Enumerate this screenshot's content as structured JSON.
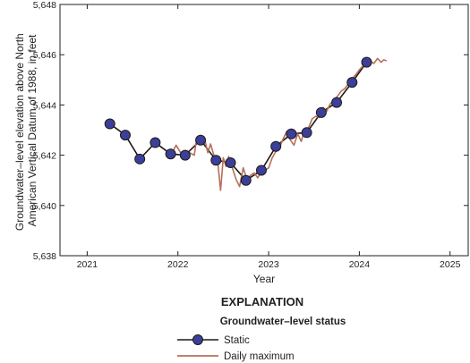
{
  "chart_data": {
    "type": "line",
    "xlabel": "Year",
    "ylabel_lines": [
      "Groundwater–level elevation above North",
      "American Vertical Datum of 1988, in feet"
    ],
    "xlim": [
      2020.7,
      2025.2
    ],
    "ylim": [
      5638,
      5648
    ],
    "x_ticks": [
      2021,
      2022,
      2023,
      2024,
      2025
    ],
    "y_ticks": [
      5638,
      5640,
      5642,
      5644,
      5646,
      5648
    ],
    "y_tick_labels": [
      "5,638",
      "5,640",
      "5,642",
      "5,644",
      "5,646",
      "5,648"
    ],
    "grid": false,
    "colors": {
      "static": "#1f1a17",
      "static_marker": "#3b3f99",
      "daily": "#b5705a"
    },
    "series": [
      {
        "name": "Static",
        "x": [
          2021.25,
          2021.42,
          2021.58,
          2021.75,
          2021.92,
          2022.08,
          2022.25,
          2022.42,
          2022.58,
          2022.75,
          2022.92,
          2023.08,
          2023.25,
          2023.42,
          2023.58,
          2023.75,
          2023.92,
          2024.08
        ],
        "y": [
          5643.25,
          5642.8,
          5641.85,
          5642.5,
          5642.05,
          5642.0,
          5642.6,
          5641.8,
          5641.7,
          5641.0,
          5641.4,
          5642.35,
          5642.85,
          5642.9,
          5643.7,
          5644.1,
          5644.9,
          5645.7
        ]
      },
      {
        "name": "Daily maximum",
        "x": [
          2021.93,
          2021.98,
          2022.03,
          2022.08,
          2022.13,
          2022.18,
          2022.2,
          2022.25,
          2022.3,
          2022.33,
          2022.36,
          2022.4,
          2022.44,
          2022.47,
          2022.5,
          2022.53,
          2022.56,
          2022.6,
          2022.64,
          2022.68,
          2022.72,
          2022.76,
          2022.8,
          2022.84,
          2022.88,
          2022.92,
          2022.96,
          2023.0,
          2023.04,
          2023.08,
          2023.12,
          2023.16,
          2023.2,
          2023.24,
          2023.28,
          2023.32,
          2023.36,
          2023.4,
          2023.44,
          2023.48,
          2023.52,
          2023.56,
          2023.6,
          2023.64,
          2023.68,
          2023.72,
          2023.76,
          2023.8,
          2023.84,
          2023.88,
          2023.92,
          2023.96,
          2024.0,
          2024.04,
          2024.08,
          2024.12,
          2024.16,
          2024.2,
          2024.24,
          2024.27,
          2024.3
        ],
        "y": [
          5642.05,
          5642.4,
          5642.1,
          5641.85,
          5642.1,
          5642.0,
          5642.5,
          5642.65,
          5642.55,
          5642.1,
          5642.45,
          5641.95,
          5641.7,
          5640.6,
          5641.9,
          5641.55,
          5641.95,
          5641.5,
          5641.05,
          5640.75,
          5641.5,
          5641.05,
          5641.2,
          5641.3,
          5641.1,
          5641.35,
          5641.4,
          5641.5,
          5641.9,
          5642.15,
          5642.3,
          5642.65,
          5642.95,
          5642.6,
          5642.4,
          5642.85,
          5642.55,
          5643.05,
          5643.1,
          5643.45,
          5643.55,
          5643.5,
          5643.9,
          5643.75,
          5644.05,
          5644.2,
          5644.35,
          5644.55,
          5644.65,
          5644.85,
          5645.05,
          5645.2,
          5645.4,
          5645.55,
          5645.6,
          5645.75,
          5645.65,
          5645.85,
          5645.7,
          5645.8,
          5645.75
        ]
      }
    ],
    "legend": {
      "title": "EXPLANATION",
      "subtitle": "Groundwater–level status",
      "placement": "bottom-center",
      "items": [
        "Static",
        "Daily maximum"
      ]
    }
  }
}
